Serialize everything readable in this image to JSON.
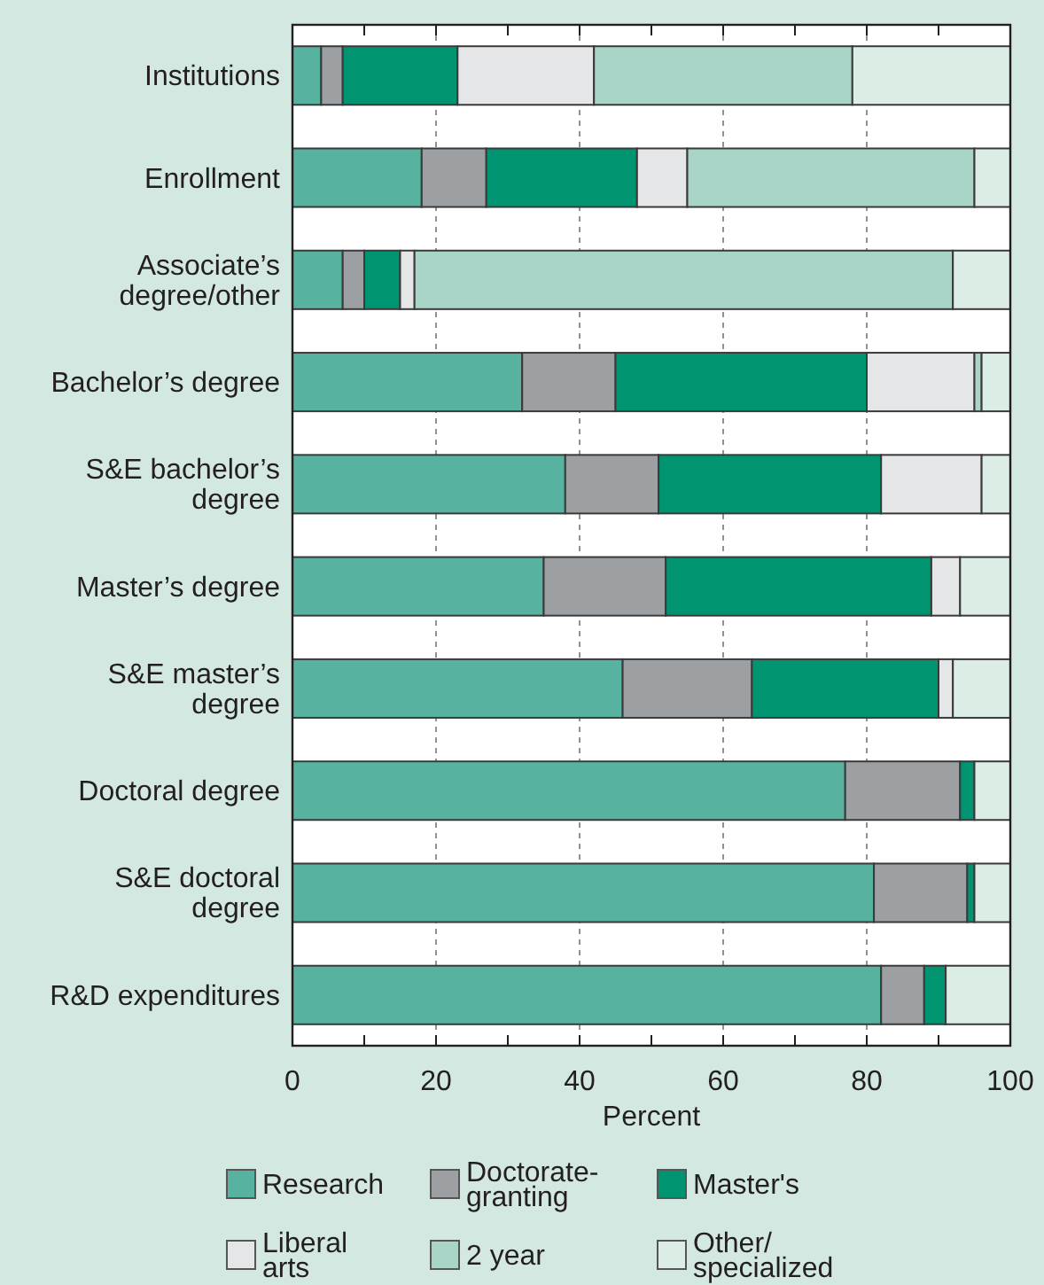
{
  "chart_data": {
    "type": "bar",
    "stacked": true,
    "orientation": "horizontal",
    "categories": [
      "Institutions",
      "Enrollment",
      "Associate’s\ndegree/other",
      "Bachelor’s degree",
      "S&E bachelor’s\ndegree",
      "Master’s degree",
      "S&E master’s\ndegree",
      "Doctoral degree",
      "S&E doctoral\ndegree",
      "R&D expenditures"
    ],
    "series": [
      {
        "name": "Research",
        "color": "#57b39f",
        "values": [
          4,
          18,
          7,
          32,
          38,
          35,
          46,
          77,
          81,
          82
        ]
      },
      {
        "name": "Doctorate-\ngranting",
        "color": "#9ca0a3",
        "values": [
          3,
          9,
          3,
          13,
          13,
          17,
          18,
          16,
          13,
          6
        ]
      },
      {
        "name": "Master's",
        "color": "#009470",
        "values": [
          16,
          21,
          5,
          35,
          31,
          37,
          26,
          2,
          1,
          3
        ]
      },
      {
        "name": "Liberal\narts",
        "color": "#e5e6e8",
        "values": [
          19,
          7,
          2,
          15,
          14,
          4,
          2,
          0,
          0,
          0
        ]
      },
      {
        "name": "2 year",
        "color": "#a8d5c7",
        "values": [
          36,
          40,
          75,
          1,
          0,
          0,
          0,
          0,
          0,
          0
        ]
      },
      {
        "name": "Other/\nspecialized",
        "color": "#dcede6",
        "values": [
          22,
          5,
          8,
          4,
          4,
          7,
          8,
          5,
          5,
          9
        ]
      }
    ],
    "xlim": [
      0,
      100
    ],
    "xticks": [
      0,
      {
        "value": 10,
        "label": null
      },
      20,
      {
        "value": 30,
        "label": null
      },
      40,
      {
        "value": 50,
        "label": null
      },
      60,
      {
        "value": 70,
        "label": null
      },
      80,
      {
        "value": 90,
        "label": null
      },
      100
    ],
    "xlabel": "Percent",
    "grid": "x",
    "legend": "bottom"
  }
}
